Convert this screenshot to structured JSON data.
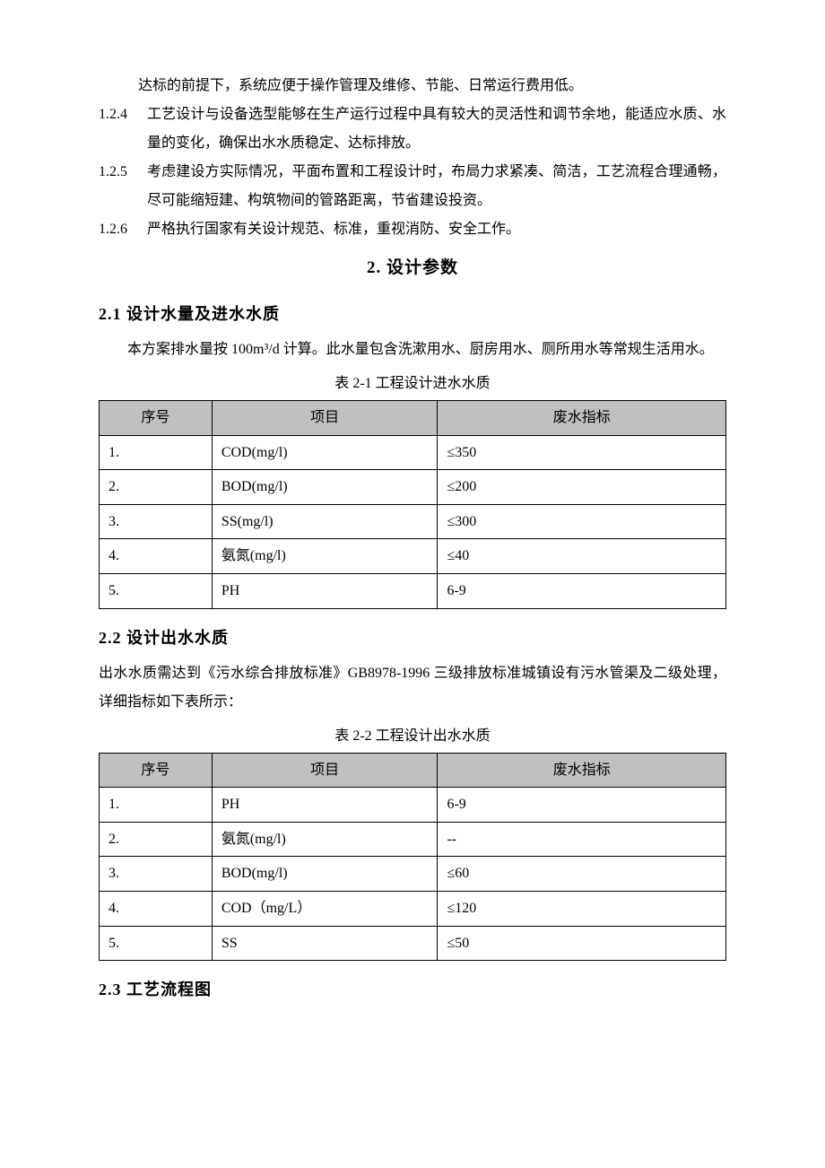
{
  "items": [
    {
      "num": "",
      "cont": "达标的前提下，系统应便于操作管理及维修、节能、日常运行费用低。",
      "indentCont": true
    },
    {
      "num": "1.2.4",
      "txt": "工艺设计与设备选型能够在生产运行过程中具有较大的灵活性和调节余地，能适应水质、水量的变化，确保出水水质稳定、达标排放。"
    },
    {
      "num": "1.2.5",
      "txt": "考虑建设方实际情况，平面布置和工程设计时，布局力求紧凑、简洁，工艺流程合理通畅，尽可能缩短建、构筑物间的管路距离，节省建设投资。"
    },
    {
      "num": "1.2.6",
      "txt": "严格执行国家有关设计规范、标准，重视消防、安全工作。"
    }
  ],
  "section2": {
    "title": "2. 设计参数",
    "sub21": {
      "title": "2.1 设计水量及进水水质",
      "body": "本方案排水量按 100m³/d 计算。此水量包含洗漱用水、厨房用水、厕所用水等常规生活用水。"
    },
    "table21": {
      "caption": "表 2-1 工程设计进水水质",
      "headers": {
        "seq": "序号",
        "item": "项目",
        "val": "废水指标"
      },
      "rows": [
        {
          "seq": "1.",
          "item": "COD(mg/l)",
          "val": "≤350"
        },
        {
          "seq": "2.",
          "item": "BOD(mg/l)",
          "val": "≤200"
        },
        {
          "seq": "3.",
          "item": "SS(mg/l)",
          "val": "≤300"
        },
        {
          "seq": "4.",
          "item": "氨氮(mg/l)",
          "val": "≤40"
        },
        {
          "seq": "5.",
          "item": "PH",
          "val": "6-9"
        }
      ]
    },
    "sub22": {
      "title": "2.2 设计出水水质",
      "body": "出水水质需达到《污水综合排放标准》GB8978-1996 三级排放标准城镇设有污水管渠及二级处理，详细指标如下表所示："
    },
    "table22": {
      "caption": "表 2-2 工程设计出水水质",
      "headers": {
        "seq": "序号",
        "item": "项目",
        "val": "废水指标"
      },
      "rows": [
        {
          "seq": "1.",
          "item": "PH",
          "val": "6-9"
        },
        {
          "seq": "2.",
          "item": "氨氮(mg/l)",
          "val": "--"
        },
        {
          "seq": "3.",
          "item": "BOD(mg/l)",
          "val": "≤60"
        },
        {
          "seq": "4.",
          "item": "COD（mg/L）",
          "val": "≤120"
        },
        {
          "seq": "5.",
          "item": "SS",
          "val": "≤50"
        }
      ]
    },
    "sub23": {
      "title": "2.3 工艺流程图"
    }
  },
  "styles": {
    "header_bg": "#c0c0c0",
    "border_color": "#000000",
    "body_fontsize": 16,
    "title_fontsize": 19,
    "subsection_fontsize": 18
  }
}
